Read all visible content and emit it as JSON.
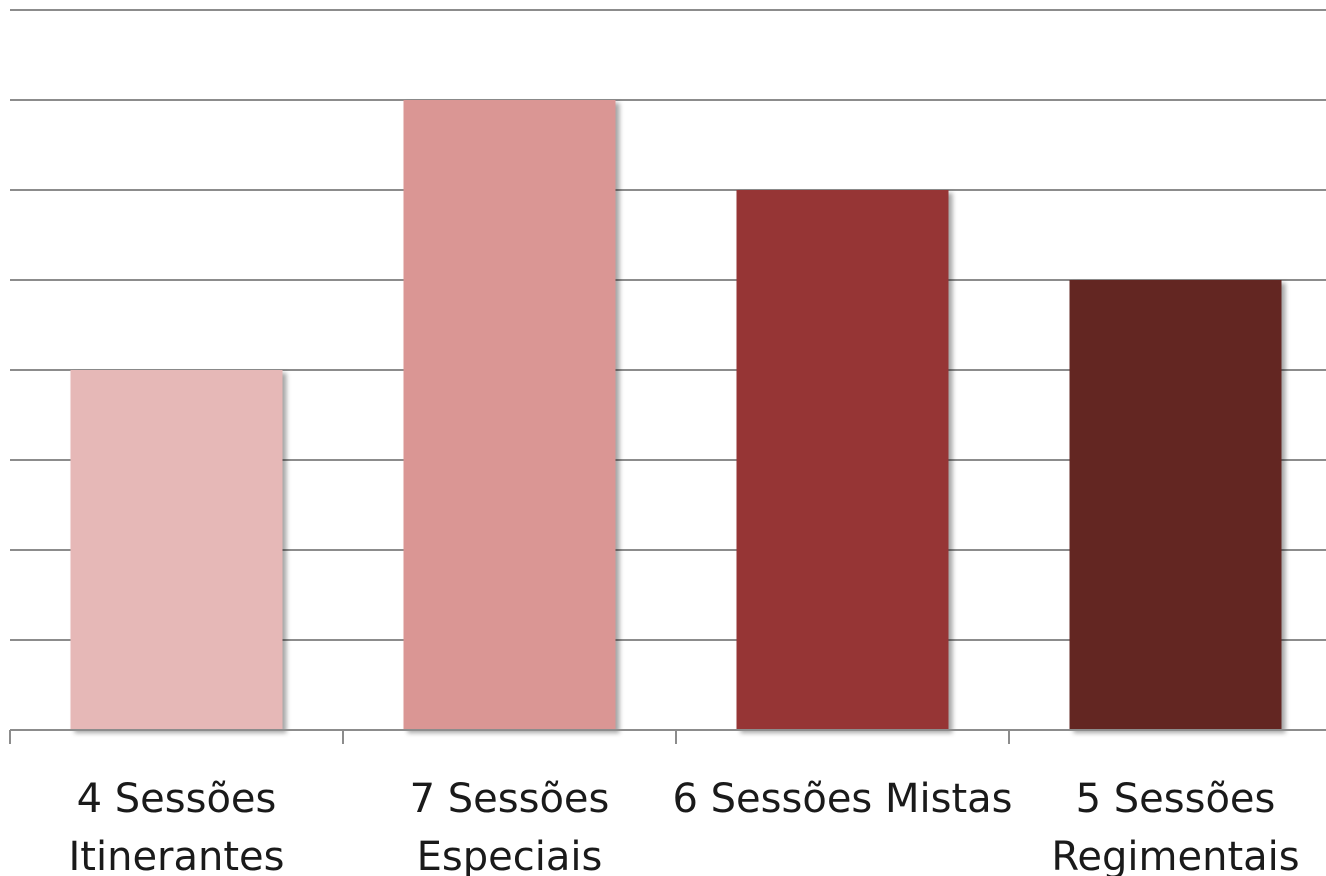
{
  "chart_data": {
    "type": "bar",
    "categories": [
      [
        "4 Sessões",
        "Itinerantes"
      ],
      [
        "7 Sessões",
        "Especiais"
      ],
      [
        "6 Sessões Mistas"
      ],
      [
        "5 Sessões",
        "Regimentais"
      ]
    ],
    "values": [
      4,
      7,
      6,
      5
    ],
    "ylim": [
      0,
      8
    ],
    "grid": true,
    "legend": "none",
    "title": "",
    "xlabel": "",
    "ylabel": "",
    "colors": [
      "#E6B8B7",
      "#DA9694",
      "#963634",
      "#632523"
    ],
    "gridline_color": "#8c8c8c"
  }
}
